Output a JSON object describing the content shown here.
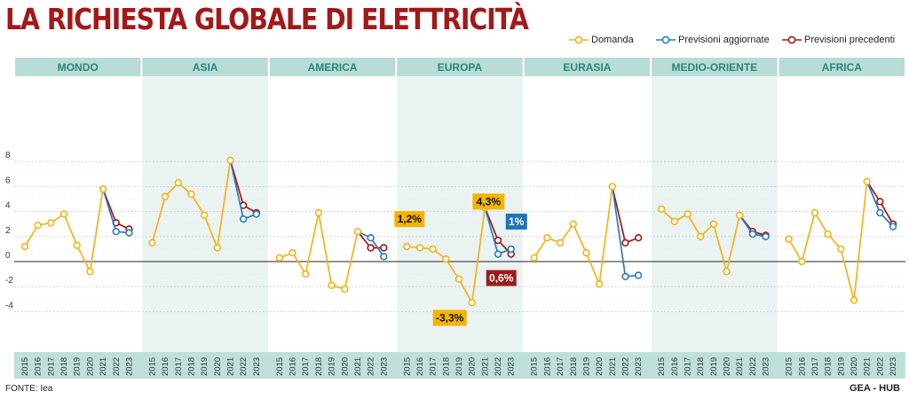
{
  "title": "LA RICHIESTA GLOBALE DI ELETTRICITÀ",
  "source": "FONTE: Iea",
  "credit": "GEA - HUB",
  "colors": {
    "domanda": "#f2b31a",
    "aggiornate": "#2b7bba",
    "precedenti": "#a31818",
    "header_bg": "#b8dcd6",
    "header_text": "#2b8578",
    "band": "#dcebe8"
  },
  "chart_data": {
    "type": "line",
    "legend_position": "top-right",
    "legend": [
      "Domanda",
      "Previsioni aggiornate",
      "Previsioni precedenti"
    ],
    "ylim": [
      -4.5,
      8.5
    ],
    "y_ticks": [
      "8",
      "6",
      "4",
      "2",
      "0",
      "-2",
      "-4"
    ],
    "grid": true,
    "years": [
      "2015",
      "2016",
      "2017",
      "2018",
      "2019",
      "2020",
      "2021",
      "2022",
      "2023"
    ],
    "panels": [
      {
        "name": "MONDO",
        "shaded": false,
        "domanda": [
          1.2,
          2.9,
          3.1,
          3.8,
          1.3,
          -0.8,
          5.8
        ],
        "aggiornate": [
          5.8,
          2.4,
          2.3
        ],
        "precedenti": [
          5.8,
          3.1,
          2.6
        ]
      },
      {
        "name": "ASIA",
        "shaded": true,
        "domanda": [
          1.5,
          5.2,
          6.3,
          5.4,
          3.7,
          1.1,
          8.1
        ],
        "aggiornate": [
          8.1,
          3.4,
          3.8
        ],
        "precedenti": [
          8.1,
          4.5,
          3.9
        ]
      },
      {
        "name": "AMERICA",
        "shaded": false,
        "domanda": [
          0.3,
          0.7,
          -1.0,
          3.9,
          -1.9,
          -2.2,
          2.4
        ],
        "aggiornate": [
          2.4,
          1.9,
          0.4
        ],
        "precedenti": [
          2.4,
          1.1,
          1.1
        ]
      },
      {
        "name": "EUROPA",
        "shaded": true,
        "domanda": [
          1.2,
          1.1,
          1.0,
          0.2,
          -1.4,
          -3.3,
          4.3
        ],
        "aggiornate": [
          4.3,
          0.6,
          1.0
        ],
        "precedenti": [
          4.3,
          1.7,
          0.6
        ]
      },
      {
        "name": "EURASIA",
        "shaded": false,
        "domanda": [
          0.3,
          1.9,
          1.5,
          3.0,
          0.7,
          -1.8,
          6.0
        ],
        "aggiornate": [
          6.0,
          -1.2,
          -1.1
        ],
        "precedenti": [
          6.0,
          1.5,
          1.9
        ]
      },
      {
        "name": "MEDIO-ORIENTE",
        "shaded": true,
        "domanda": [
          4.2,
          3.2,
          3.8,
          2.0,
          3.0,
          -0.8,
          3.7
        ],
        "aggiornate": [
          3.7,
          2.2,
          2.0
        ],
        "precedenti": [
          3.7,
          2.4,
          2.1
        ]
      },
      {
        "name": "AFRICA",
        "shaded": false,
        "domanda": [
          1.8,
          0.0,
          3.9,
          2.2,
          1.0,
          -3.1,
          6.4
        ],
        "aggiornate": [
          6.4,
          3.9,
          2.8
        ],
        "precedenti": [
          6.4,
          4.8,
          3.0
        ]
      }
    ],
    "annotations": [
      {
        "panel": "EUROPA",
        "text": "1,2%",
        "value": 1.2,
        "style": "domanda"
      },
      {
        "panel": "EUROPA",
        "text": "4,3%",
        "value": 4.3,
        "style": "domanda"
      },
      {
        "panel": "EUROPA",
        "text": "-3,3%",
        "value": -3.3,
        "style": "domanda"
      },
      {
        "panel": "EUROPA",
        "text": "1%",
        "value": 1.0,
        "style": "aggiornate"
      },
      {
        "panel": "EUROPA",
        "text": "0,6%",
        "value": 0.6,
        "style": "precedenti"
      }
    ]
  }
}
